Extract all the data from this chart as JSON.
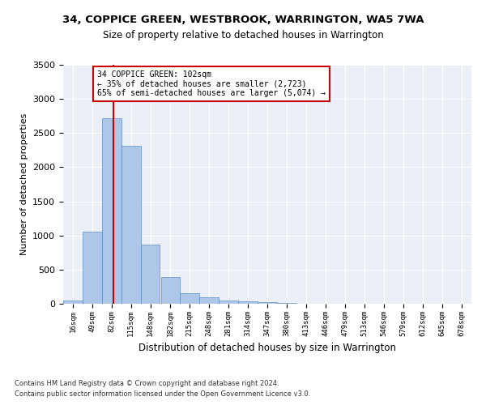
{
  "title1": "34, COPPICE GREEN, WESTBROOK, WARRINGTON, WA5 7WA",
  "title2": "Size of property relative to detached houses in Warrington",
  "xlabel": "Distribution of detached houses by size in Warrington",
  "ylabel": "Number of detached properties",
  "annotation_line1": "34 COPPICE GREEN: 102sqm",
  "annotation_line2": "← 35% of detached houses are smaller (2,723)",
  "annotation_line3": "65% of semi-detached houses are larger (5,074) →",
  "property_size_sqm": 102,
  "footnote1": "Contains HM Land Registry data © Crown copyright and database right 2024.",
  "footnote2": "Contains public sector information licensed under the Open Government Licence v3.0.",
  "bin_labels": [
    "16sqm",
    "49sqm",
    "82sqm",
    "115sqm",
    "148sqm",
    "182sqm",
    "215sqm",
    "248sqm",
    "281sqm",
    "314sqm",
    "347sqm",
    "380sqm",
    "413sqm",
    "446sqm",
    "479sqm",
    "513sqm",
    "546sqm",
    "579sqm",
    "612sqm",
    "645sqm",
    "678sqm"
  ],
  "bin_edges": [
    16,
    49,
    82,
    115,
    148,
    182,
    215,
    248,
    281,
    314,
    347,
    380,
    413,
    446,
    479,
    513,
    546,
    579,
    612,
    645,
    678,
    711
  ],
  "bar_heights": [
    50,
    1060,
    2720,
    2310,
    870,
    390,
    150,
    90,
    50,
    30,
    20,
    10,
    5,
    5,
    2,
    1,
    1,
    0,
    0,
    0,
    0
  ],
  "bar_color": "#aec6e8",
  "bar_edge_color": "#5a8fc4",
  "vline_color": "#cc0000",
  "annotation_box_edge_color": "#cc0000",
  "background_color": "#ffffff",
  "axes_bg_color": "#eaeff8",
  "grid_color": "#ffffff",
  "ylim": [
    0,
    3500
  ],
  "yticks": [
    0,
    500,
    1000,
    1500,
    2000,
    2500,
    3000,
    3500
  ]
}
